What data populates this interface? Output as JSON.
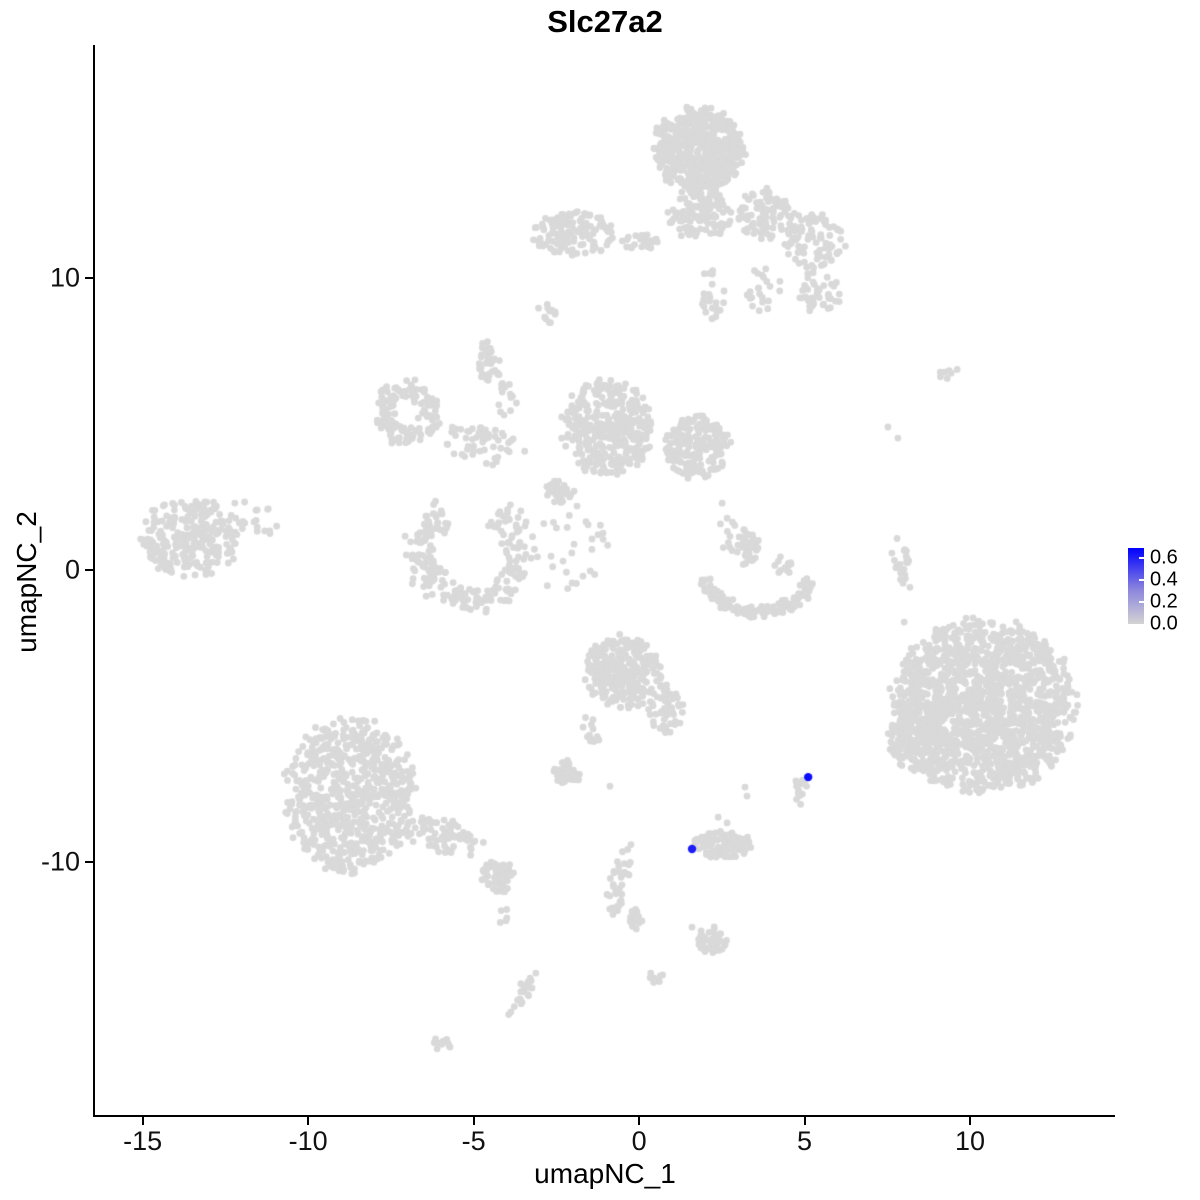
{
  "title": "Slc27a2",
  "axes": {
    "x": {
      "label": "umapNC_1",
      "ticks": [
        -15,
        -10,
        -5,
        0,
        5,
        10
      ],
      "range": [
        -16.44,
        14.38
      ]
    },
    "y": {
      "label": "umapNC_2",
      "ticks": [
        -10,
        0,
        10
      ],
      "range": [
        -18.66,
        17.98
      ]
    }
  },
  "legend": {
    "labels": [
      "0.6",
      "0.4",
      "0.2",
      "0.0"
    ],
    "values": [
      0.6,
      0.4,
      0.2,
      0.0
    ],
    "scale_max": 0.69,
    "low_color": "#d3d3d3",
    "mid_color": "#8c86dd",
    "high_color": "#0000ff"
  },
  "style": {
    "point_color": "#d9d9d9",
    "point_radius": 3.4,
    "highlight_radius": 4.2,
    "axis_color": "#000000",
    "background": "#ffffff"
  },
  "chart_data": {
    "type": "scatter",
    "title": "Slc27a2",
    "xlabel": "umapNC_1",
    "ylabel": "umapNC_2",
    "xlim": [
      -16.44,
      14.38
    ],
    "ylim": [
      -18.66,
      17.98
    ],
    "grid": false,
    "legend_position": "right",
    "expression_scale": {
      "min": 0.0,
      "max": 0.69
    },
    "seed": 42,
    "clusters": [
      {
        "shape": "blob",
        "x": 1.78,
        "y": 14.38,
        "rx": 1.36,
        "ry": 1.44,
        "n": 560
      },
      {
        "shape": "blob",
        "x": 1.84,
        "y": 12.16,
        "rx": 0.91,
        "ry": 0.86,
        "n": 120
      },
      {
        "shape": "blob",
        "x": -2.02,
        "y": 11.54,
        "rx": 1.27,
        "ry": 0.75,
        "n": 130
      },
      {
        "shape": "blob",
        "x": 0.03,
        "y": 11.23,
        "rx": 0.76,
        "ry": 0.27,
        "n": 25
      },
      {
        "shape": "blob",
        "x": 3.81,
        "y": 12.16,
        "rx": 0.85,
        "ry": 0.86,
        "n": 90
      },
      {
        "shape": "blob",
        "x": 5.32,
        "y": 11.3,
        "rx": 0.91,
        "ry": 0.96,
        "n": 90
      },
      {
        "shape": "blob",
        "x": 5.47,
        "y": 9.49,
        "rx": 0.66,
        "ry": 0.75,
        "n": 45
      },
      {
        "shape": "blob",
        "x": 2.15,
        "y": 9.42,
        "rx": 0.45,
        "ry": 0.86,
        "n": 25
      },
      {
        "shape": "blob",
        "x": 3.81,
        "y": 9.59,
        "rx": 0.54,
        "ry": 0.96,
        "n": 22
      },
      {
        "shape": "blob",
        "x": -2.75,
        "y": 8.8,
        "rx": 0.3,
        "ry": 0.34,
        "n": 12,
        "rot": 40
      },
      {
        "shape": "blob",
        "x": -4.5,
        "y": 7.12,
        "rx": 0.36,
        "ry": 0.82,
        "n": 35
      },
      {
        "shape": "blob",
        "x": -3.99,
        "y": 5.89,
        "rx": 0.36,
        "ry": 0.62,
        "n": 14
      },
      {
        "shape": "ring",
        "x": -7.01,
        "y": 5.38,
        "rx": 0.97,
        "ry": 1.16,
        "n": 140,
        "inner": 0.35
      },
      {
        "shape": "blob",
        "x": -4.71,
        "y": 4.28,
        "rx": 1.21,
        "ry": 0.62,
        "n": 55,
        "rot": -15
      },
      {
        "shape": "blob",
        "x": -0.94,
        "y": 4.86,
        "rx": 1.36,
        "ry": 1.64,
        "n": 380
      },
      {
        "shape": "blob",
        "x": 1.75,
        "y": 4.18,
        "rx": 0.97,
        "ry": 1.1,
        "n": 200
      },
      {
        "shape": "arc",
        "x": -5.11,
        "y": 0.6,
        "rx": 1.5,
        "ry": 1.55,
        "n": 230,
        "a0": 120,
        "a1": 420,
        "th": 0.38
      },
      {
        "shape": "blob",
        "x": -2.39,
        "y": 2.67,
        "rx": 0.43,
        "ry": 0.43,
        "n": 40
      },
      {
        "shape": "blob",
        "x": -1.93,
        "y": 0.68,
        "rx": 1.36,
        "ry": 1.54,
        "n": 30
      },
      {
        "shape": "blob",
        "x": -13.56,
        "y": 1.1,
        "rx": 1.45,
        "ry": 1.37,
        "n": 260
      },
      {
        "shape": "blob",
        "x": -11.81,
        "y": 1.64,
        "rx": 0.91,
        "ry": 0.86,
        "n": 22
      },
      {
        "shape": "arc",
        "x": 3.59,
        "y": 0.07,
        "rx": 1.66,
        "ry": 1.5,
        "n": 130,
        "a0": 195,
        "a1": 345,
        "th": 0.16
      },
      {
        "shape": "blob",
        "x": 3.29,
        "y": 0.72,
        "rx": 0.36,
        "ry": 0.75,
        "n": 45
      },
      {
        "shape": "blob",
        "x": 2.66,
        "y": 1.37,
        "rx": 0.3,
        "ry": 0.9,
        "n": 10
      },
      {
        "shape": "blob",
        "x": 4.35,
        "y": 0.17,
        "rx": 0.3,
        "ry": 0.3,
        "n": 12
      },
      {
        "shape": "blob",
        "x": 9.4,
        "y": 6.71,
        "rx": 0.36,
        "ry": 0.2,
        "n": 7
      },
      {
        "shape": "blob",
        "x": 7.92,
        "y": 0.27,
        "rx": 0.3,
        "ry": 0.89,
        "n": 22,
        "rot": 15
      },
      {
        "shape": "blob",
        "x": 10.39,
        "y": -4.66,
        "rx": 2.72,
        "ry": 2.91,
        "n": 1500
      },
      {
        "shape": "blob",
        "x": 8.34,
        "y": -5.72,
        "rx": 0.91,
        "ry": 1.2,
        "n": 140
      },
      {
        "shape": "blob",
        "x": -0.48,
        "y": -3.49,
        "rx": 1.15,
        "ry": 1.2,
        "n": 280
      },
      {
        "shape": "blob",
        "x": 0.79,
        "y": -4.73,
        "rx": 0.54,
        "ry": 0.86,
        "n": 55
      },
      {
        "shape": "blob",
        "x": -1.48,
        "y": -5.48,
        "rx": 0.24,
        "ry": 0.75,
        "n": 13,
        "rot": 20
      },
      {
        "shape": "blob",
        "x": -2.15,
        "y": -6.92,
        "rx": 0.48,
        "ry": 0.41,
        "n": 35
      },
      {
        "shape": "blob",
        "x": -8.73,
        "y": -7.71,
        "rx": 1.96,
        "ry": 2.57,
        "n": 700
      },
      {
        "shape": "blob",
        "x": -5.86,
        "y": -9.18,
        "rx": 1.21,
        "ry": 0.62,
        "n": 75,
        "rot": -20
      },
      {
        "shape": "blob",
        "x": -4.29,
        "y": -10.51,
        "rx": 0.54,
        "ry": 0.55,
        "n": 55
      },
      {
        "shape": "blob",
        "x": -4.11,
        "y": -11.81,
        "rx": 0.15,
        "ry": 0.8,
        "n": 5
      },
      {
        "shape": "blob",
        "x": -3.52,
        "y": -14.45,
        "rx": 0.24,
        "ry": 0.9,
        "n": 24,
        "rot": -25
      },
      {
        "shape": "blob",
        "x": -0.57,
        "y": -10.55,
        "rx": 0.3,
        "ry": 1.37,
        "n": 35,
        "rot": -12
      },
      {
        "shape": "blob",
        "x": -0.15,
        "y": -11.88,
        "rx": 0.27,
        "ry": 0.45,
        "n": 18
      },
      {
        "shape": "blob",
        "x": 2.51,
        "y": -9.42,
        "rx": 0.85,
        "ry": 0.48,
        "n": 110
      },
      {
        "shape": "blob",
        "x": 2.21,
        "y": -12.67,
        "rx": 0.42,
        "ry": 0.45,
        "n": 40
      },
      {
        "shape": "blob",
        "x": 0.54,
        "y": -14.01,
        "rx": 0.27,
        "ry": 0.31,
        "n": 11
      },
      {
        "shape": "blob",
        "x": 4.86,
        "y": -7.57,
        "rx": 0.24,
        "ry": 0.48,
        "n": 16
      },
      {
        "shape": "blob",
        "x": -6.01,
        "y": -16.2,
        "rx": 0.36,
        "ry": 0.24,
        "n": 11,
        "rot": -20
      }
    ],
    "singles": [
      [
        2.39,
        -8.46
      ],
      [
        2.66,
        -8.66
      ],
      [
        1.6,
        -12.23
      ],
      [
        -0.88,
        -7.4
      ],
      [
        2.51,
        2.29
      ],
      [
        3.2,
        -7.43
      ],
      [
        3.26,
        -7.74
      ],
      [
        7.52,
        4.9
      ],
      [
        7.82,
        4.52
      ],
      [
        8.01,
        -1.78
      ]
    ],
    "highlighted": [
      {
        "x": 5.11,
        "y": -7.09,
        "value": 0.65
      },
      {
        "x": 1.6,
        "y": -9.55,
        "value": 0.6
      }
    ]
  }
}
